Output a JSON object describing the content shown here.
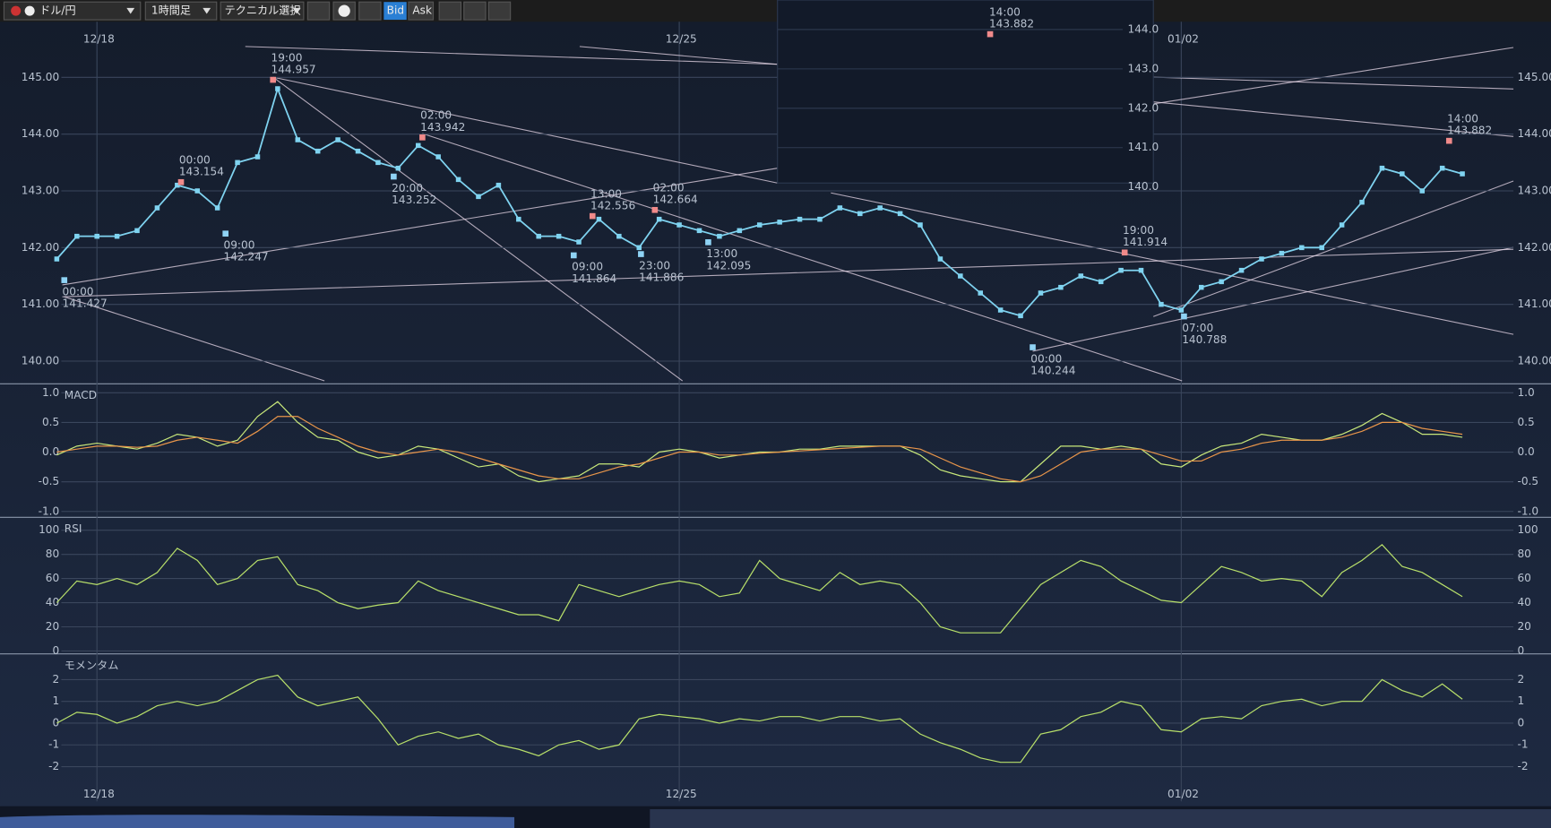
{
  "toolbar": {
    "pair": "ドル/円",
    "timeframe": "1時間足",
    "technical": "テクニカル選択",
    "bid": "Bid",
    "ask": "Ask"
  },
  "chart_data": [
    {
      "type": "line",
      "color": "#7fd3f0",
      "categories": [
        null,
        null,
        "12/18",
        null,
        null,
        null,
        null,
        null,
        null,
        null,
        null,
        null,
        null,
        null,
        null,
        null,
        null,
        null,
        null,
        null,
        null,
        null,
        null,
        null,
        null,
        null,
        null,
        null,
        null,
        null,
        null,
        "12/25",
        null,
        null,
        null,
        null,
        null,
        null,
        null,
        null,
        null,
        null,
        null,
        null,
        null,
        null,
        null,
        null,
        null,
        null,
        null,
        null,
        null,
        null,
        null,
        null,
        "01/02",
        null,
        null,
        null,
        null,
        null,
        null,
        null,
        null,
        null,
        null,
        null,
        null,
        null,
        null
      ],
      "values": [
        141.8,
        142.2,
        142.2,
        142.2,
        142.3,
        142.7,
        143.1,
        143.0,
        142.7,
        143.5,
        143.6,
        144.8,
        143.9,
        143.7,
        143.9,
        143.7,
        143.5,
        143.4,
        143.8,
        143.6,
        143.2,
        142.9,
        143.1,
        142.5,
        142.2,
        142.2,
        142.1,
        142.5,
        142.2,
        142.0,
        142.5,
        142.4,
        142.3,
        142.2,
        142.3,
        142.4,
        142.45,
        142.5,
        142.5,
        142.7,
        142.6,
        142.7,
        142.6,
        142.4,
        141.8,
        141.5,
        141.2,
        140.9,
        140.8,
        141.2,
        141.3,
        141.5,
        141.4,
        141.6,
        141.6,
        141.0,
        140.9,
        141.3,
        141.4,
        141.6,
        141.8,
        141.9,
        142.0,
        142.0,
        142.4,
        142.8,
        143.4,
        143.3,
        143.0,
        143.4,
        143.3
      ],
      "ylim": [
        139.6,
        145.98
      ],
      "yticks": [
        {
          "value": 140,
          "label": "140.00"
        },
        {
          "value": 141,
          "label": "141.00"
        },
        {
          "value": 142,
          "label": "142.00"
        },
        {
          "value": 143,
          "label": "143.00"
        },
        {
          "value": 144,
          "label": "144.00"
        },
        {
          "value": 145,
          "label": "145.00"
        }
      ],
      "grid": true,
      "annotations": [
        {
          "time": "00:00",
          "price": 143.154,
          "color": "#f08a8a"
        },
        {
          "time": "19:00",
          "price": 144.957,
          "color": "#f08a8a"
        },
        {
          "time": "02:00",
          "price": 143.942,
          "color": "#f08a8a"
        },
        {
          "time": "13:00",
          "price": 142.556,
          "color": "#f08a8a"
        },
        {
          "time": "02:00",
          "price": 142.664,
          "color": "#f08a8a"
        },
        {
          "time": "19:00",
          "price": 141.914,
          "color": "#f08a8a"
        },
        {
          "time": "14:00",
          "price": 143.882,
          "color": "#f08a8a"
        },
        {
          "time": "00:00",
          "price": 141.427,
          "color": "#8fd3f5"
        },
        {
          "time": "09:00",
          "price": 142.247,
          "color": "#8fd3f5"
        },
        {
          "time": "20:00",
          "price": 143.252,
          "color": "#8fd3f5"
        },
        {
          "time": "09:00",
          "price": 141.864,
          "color": "#8fd3f5"
        },
        {
          "time": "23:00",
          "price": 141.886,
          "color": "#8fd3f5"
        },
        {
          "time": "13:00",
          "price": 142.095,
          "color": "#8fd3f5"
        },
        {
          "time": "00:00",
          "price": 140.244,
          "color": "#8fd3f5"
        },
        {
          "time": "07:00",
          "price": 140.788,
          "color": "#8fd3f5"
        }
      ]
    },
    {
      "type": "line",
      "title": "MACD",
      "series": [
        {
          "color": "#c8e87a",
          "values": [
            -0.05,
            0.1,
            0.15,
            0.1,
            0.05,
            0.15,
            0.3,
            0.25,
            0.1,
            0.2,
            0.6,
            0.85,
            0.5,
            0.25,
            0.2,
            0.0,
            -0.1,
            -0.05,
            0.1,
            0.05,
            -0.1,
            -0.25,
            -0.2,
            -0.4,
            -0.5,
            -0.45,
            -0.4,
            -0.2,
            -0.2,
            -0.25,
            0.0,
            0.05,
            0.0,
            -0.1,
            -0.05,
            0.0,
            0.0,
            0.05,
            0.05,
            0.1,
            0.1,
            0.1,
            0.1,
            -0.05,
            -0.3,
            -0.4,
            -0.45,
            -0.5,
            -0.5,
            -0.2,
            0.1,
            0.1,
            0.05,
            0.1,
            0.05,
            -0.2,
            -0.25,
            -0.05,
            0.1,
            0.15,
            0.3,
            0.25,
            0.2,
            0.2,
            0.3,
            0.45,
            0.65,
            0.5,
            0.3,
            0.3,
            0.25
          ]
        },
        {
          "color": "#e8954a",
          "values": [
            0,
            0.05,
            0.1,
            0.1,
            0.08,
            0.1,
            0.2,
            0.25,
            0.2,
            0.15,
            0.35,
            0.6,
            0.6,
            0.4,
            0.25,
            0.1,
            0.0,
            -0.05,
            0.0,
            0.05,
            0.0,
            -0.1,
            -0.2,
            -0.3,
            -0.4,
            -0.45,
            -0.45,
            -0.35,
            -0.25,
            -0.2,
            -0.1,
            0.0,
            0.0,
            -0.05,
            -0.05,
            -0.02,
            0.0,
            0.02,
            0.04,
            0.06,
            0.08,
            0.1,
            0.1,
            0.05,
            -0.1,
            -0.25,
            -0.35,
            -0.45,
            -0.5,
            -0.4,
            -0.2,
            0.0,
            0.05,
            0.05,
            0.05,
            -0.05,
            -0.15,
            -0.15,
            0.0,
            0.05,
            0.15,
            0.2,
            0.2,
            0.2,
            0.25,
            0.35,
            0.5,
            0.5,
            0.4,
            0.35,
            0.3
          ]
        }
      ],
      "ylim": [
        -1.083,
        1.117
      ],
      "yticks": [
        {
          "value": -1,
          "label": "-1.0"
        },
        -0.5,
        {
          "value": 0,
          "label": "0.0"
        },
        0.5,
        {
          "value": 1,
          "label": "1.0"
        }
      ],
      "grid": true
    },
    {
      "type": "line",
      "title": "RSI",
      "series": [
        {
          "color": "#b8e06a",
          "values": [
            40,
            58,
            55,
            60,
            55,
            65,
            85,
            75,
            55,
            60,
            75,
            78,
            55,
            50,
            40,
            35,
            38,
            40,
            58,
            50,
            45,
            40,
            35,
            30,
            30,
            25,
            55,
            50,
            45,
            50,
            55,
            58,
            55,
            45,
            48,
            75,
            60,
            55,
            50,
            65,
            55,
            58,
            55,
            40,
            20,
            15,
            15,
            15,
            35,
            55,
            65,
            75,
            70,
            58,
            50,
            42,
            40,
            55,
            70,
            65,
            58,
            60,
            58,
            45,
            65,
            75,
            88,
            70,
            65,
            55,
            45
          ]
        }
      ],
      "ylim": [
        -1.6,
        109
      ],
      "yticks": [
        0,
        20,
        40,
        60,
        80,
        100
      ],
      "grid": true
    },
    {
      "type": "line",
      "title": "モメンタム",
      "series": [
        {
          "color": "#b8e06a",
          "values": [
            0,
            0.5,
            0.4,
            0,
            0.3,
            0.8,
            1.0,
            0.8,
            1.0,
            1.5,
            2.0,
            2.2,
            1.2,
            0.8,
            1.0,
            1.2,
            0.2,
            -1.0,
            -0.6,
            -0.4,
            -0.7,
            -0.5,
            -1.0,
            -1.2,
            -1.5,
            -1.0,
            -0.8,
            -1.2,
            -1.0,
            0.2,
            0.4,
            0.3,
            0.2,
            0.0,
            0.2,
            0.1,
            0.3,
            0.3,
            0.1,
            0.3,
            0.3,
            0.1,
            0.2,
            -0.5,
            -0.9,
            -1.2,
            -1.6,
            -1.8,
            -1.8,
            -0.5,
            -0.3,
            0.3,
            0.5,
            1.0,
            0.8,
            -0.3,
            -0.4,
            0.2,
            0.3,
            0.2,
            0.8,
            1.0,
            1.1,
            0.8,
            1.0,
            1.0,
            2.0,
            1.5,
            1.2,
            1.8,
            1.1
          ]
        }
      ],
      "ylim": [
        -2.91,
        3.09
      ],
      "yticks": [
        -2,
        -1,
        0,
        1,
        2
      ],
      "grid": true
    }
  ],
  "inset": {
    "ylim": [
      139.85,
      144.75
    ],
    "yticks": [
      {
        "value": 140,
        "label": "140.0"
      },
      {
        "value": 141,
        "label": "141.0"
      },
      {
        "value": 142,
        "label": "142.0"
      },
      {
        "value": 143,
        "label": "143.0"
      },
      {
        "value": 144,
        "label": "144.0"
      }
    ],
    "annotation": {
      "time": "14:00",
      "price": 143.882
    }
  }
}
